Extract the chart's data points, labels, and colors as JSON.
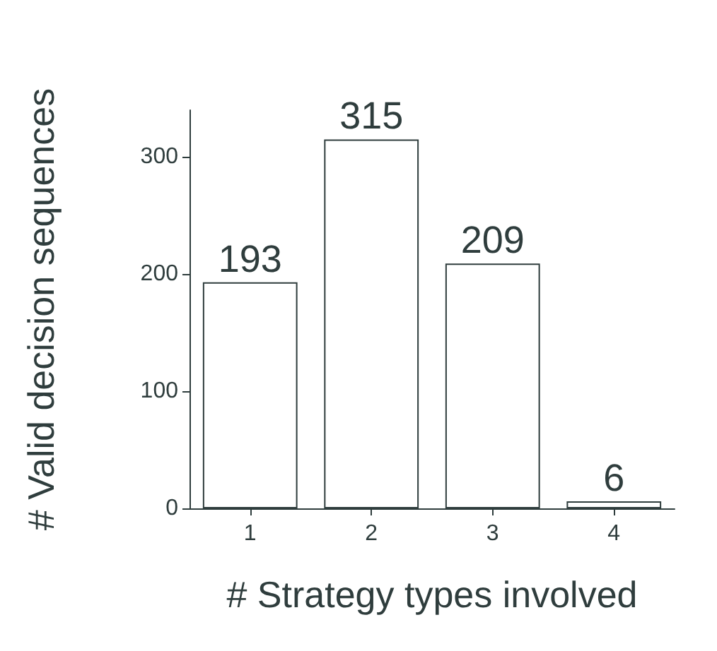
{
  "chart_data": {
    "type": "bar",
    "xlabel": "# Strategy types involved",
    "ylabel": "# Valid decision sequences",
    "categories": [
      "1",
      "2",
      "3",
      "4"
    ],
    "values": [
      193,
      315,
      209,
      6
    ],
    "color": "#ffffff",
    "ylim": [
      0,
      340
    ],
    "yticks": [
      0,
      100,
      200,
      300
    ],
    "data_labels": true
  }
}
